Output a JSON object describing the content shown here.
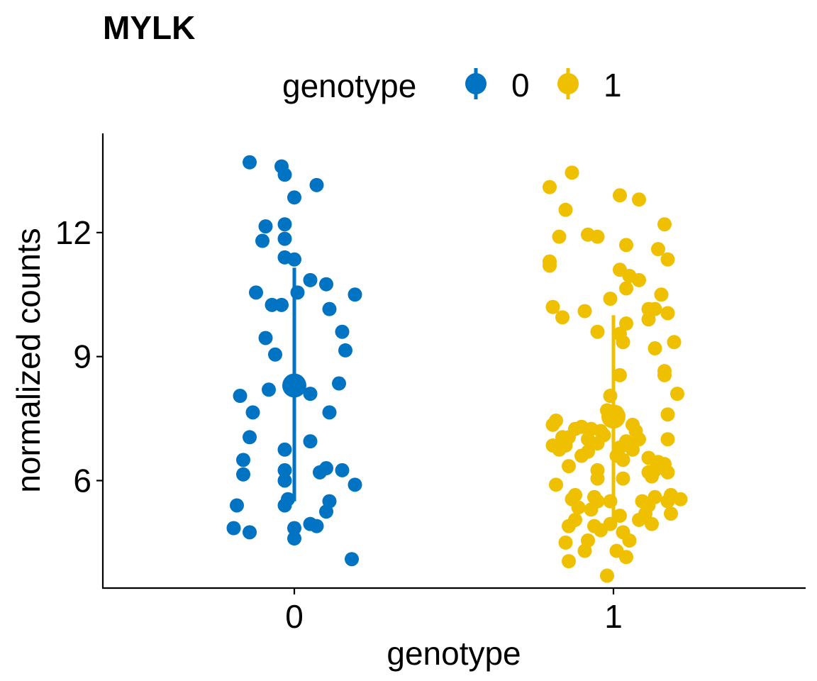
{
  "chart_data": {
    "type": "scatter",
    "title": "MYLK",
    "xlabel": "genotype",
    "ylabel": "normalized counts",
    "ylim": [
      3.4,
      14.4
    ],
    "yticks": [
      6,
      9,
      12
    ],
    "categories": [
      "0",
      "1"
    ],
    "grid": false,
    "legend": {
      "title": "genotype",
      "position": "top",
      "entries": [
        "0",
        "1"
      ]
    },
    "colors": {
      "0": "#0073C2",
      "1": "#EFC000"
    },
    "series": [
      {
        "name": "0",
        "summary": {
          "mean": 8.3,
          "low": 5.5,
          "high": 11.15
        },
        "points": [
          [
            -0.14,
            13.7
          ],
          [
            -0.04,
            13.6
          ],
          [
            -0.03,
            13.4
          ],
          [
            0.07,
            13.15
          ],
          [
            0.0,
            12.85
          ],
          [
            -0.09,
            12.15
          ],
          [
            -0.03,
            12.2
          ],
          [
            -0.1,
            11.8
          ],
          [
            -0.03,
            11.85
          ],
          [
            -0.03,
            11.4
          ],
          [
            0.0,
            11.35
          ],
          [
            0.05,
            10.85
          ],
          [
            0.1,
            10.75
          ],
          [
            -0.12,
            10.55
          ],
          [
            0.01,
            10.55
          ],
          [
            0.19,
            10.5
          ],
          [
            -0.07,
            10.25
          ],
          [
            -0.04,
            10.25
          ],
          [
            0.11,
            10.15
          ],
          [
            0.15,
            9.6
          ],
          [
            -0.09,
            9.45
          ],
          [
            0.16,
            9.15
          ],
          [
            -0.06,
            9.05
          ],
          [
            0.14,
            8.35
          ],
          [
            -0.08,
            8.2
          ],
          [
            -0.17,
            8.05
          ],
          [
            0.05,
            8.1
          ],
          [
            -0.13,
            7.65
          ],
          [
            0.11,
            7.65
          ],
          [
            -0.14,
            7.05
          ],
          [
            0.05,
            6.95
          ],
          [
            -0.03,
            6.75
          ],
          [
            -0.16,
            6.5
          ],
          [
            0.1,
            6.3
          ],
          [
            -0.03,
            6.25
          ],
          [
            0.15,
            6.25
          ],
          [
            -0.16,
            6.15
          ],
          [
            0.08,
            6.2
          ],
          [
            -0.03,
            6.0
          ],
          [
            0.19,
            5.9
          ],
          [
            -0.02,
            5.55
          ],
          [
            0.11,
            5.5
          ],
          [
            -0.18,
            5.4
          ],
          [
            -0.03,
            5.4
          ],
          [
            0.1,
            5.25
          ],
          [
            0.05,
            4.95
          ],
          [
            0.07,
            4.9
          ],
          [
            -0.19,
            4.85
          ],
          [
            0.0,
            4.85
          ],
          [
            -0.14,
            4.75
          ],
          [
            0.0,
            4.6
          ],
          [
            0.18,
            4.1
          ]
        ]
      },
      {
        "name": "1",
        "summary": {
          "mean": 7.55,
          "low": 5.1,
          "high": 10.0
        },
        "points": [
          [
            -0.13,
            13.45
          ],
          [
            -0.2,
            13.1
          ],
          [
            0.02,
            12.9
          ],
          [
            0.08,
            12.8
          ],
          [
            -0.15,
            12.55
          ],
          [
            0.16,
            12.2
          ],
          [
            -0.17,
            11.9
          ],
          [
            -0.08,
            11.95
          ],
          [
            -0.05,
            11.9
          ],
          [
            0.04,
            11.7
          ],
          [
            0.14,
            11.6
          ],
          [
            -0.2,
            11.3
          ],
          [
            -0.2,
            11.2
          ],
          [
            0.17,
            11.35
          ],
          [
            0.02,
            11.1
          ],
          [
            0.05,
            10.95
          ],
          [
            0.08,
            10.85
          ],
          [
            0.04,
            10.65
          ],
          [
            -0.01,
            10.4
          ],
          [
            0.15,
            10.5
          ],
          [
            0.11,
            10.15
          ],
          [
            0.13,
            10.15
          ],
          [
            -0.19,
            10.2
          ],
          [
            -0.09,
            10.1
          ],
          [
            0.17,
            10.05
          ],
          [
            -0.16,
            9.95
          ],
          [
            0.11,
            9.9
          ],
          [
            0.04,
            9.8
          ],
          [
            -0.05,
            9.6
          ],
          [
            0.02,
            9.55
          ],
          [
            0.03,
            9.35
          ],
          [
            0.19,
            9.35
          ],
          [
            0.13,
            9.2
          ],
          [
            0.16,
            8.65
          ],
          [
            0.16,
            8.55
          ],
          [
            0.02,
            8.55
          ],
          [
            0.2,
            8.1
          ],
          [
            -0.01,
            8.05
          ],
          [
            0.17,
            7.6
          ],
          [
            -0.02,
            7.7
          ],
          [
            0.01,
            7.65
          ],
          [
            -0.18,
            7.45
          ],
          [
            -0.19,
            7.35
          ],
          [
            0.06,
            7.35
          ],
          [
            -0.1,
            7.3
          ],
          [
            -0.12,
            7.25
          ],
          [
            -0.07,
            7.25
          ],
          [
            -0.04,
            7.2
          ],
          [
            0.07,
            7.2
          ],
          [
            -0.03,
            7.1
          ],
          [
            -0.14,
            7.05
          ],
          [
            -0.16,
            7.05
          ],
          [
            -0.08,
            7.0
          ],
          [
            0.08,
            7.0
          ],
          [
            0.17,
            7.0
          ],
          [
            0.04,
            6.95
          ],
          [
            -0.05,
            6.9
          ],
          [
            -0.19,
            6.85
          ],
          [
            0.02,
            6.8
          ],
          [
            -0.15,
            6.85
          ],
          [
            -0.17,
            6.75
          ],
          [
            -0.08,
            6.7
          ],
          [
            0.06,
            6.75
          ],
          [
            0.01,
            6.6
          ],
          [
            -0.1,
            6.6
          ],
          [
            0.11,
            6.55
          ],
          [
            0.14,
            6.45
          ],
          [
            0.03,
            6.5
          ],
          [
            0.16,
            6.4
          ],
          [
            -0.14,
            6.35
          ],
          [
            -0.05,
            6.25
          ],
          [
            0.13,
            6.25
          ],
          [
            0.11,
            6.2
          ],
          [
            0.17,
            6.2
          ],
          [
            0.12,
            6.1
          ],
          [
            -0.05,
            6.05
          ],
          [
            0.03,
            6.05
          ],
          [
            -0.18,
            5.9
          ],
          [
            0.18,
            5.65
          ],
          [
            -0.12,
            5.65
          ],
          [
            -0.06,
            5.6
          ],
          [
            0.13,
            5.6
          ],
          [
            -0.13,
            5.55
          ],
          [
            0.17,
            5.5
          ],
          [
            0.09,
            5.5
          ],
          [
            0.21,
            5.55
          ],
          [
            -0.05,
            5.5
          ],
          [
            -0.01,
            5.5
          ],
          [
            0.11,
            5.4
          ],
          [
            -0.11,
            5.35
          ],
          [
            -0.07,
            5.3
          ],
          [
            0.1,
            5.2
          ],
          [
            0.18,
            5.2
          ],
          [
            0.02,
            5.15
          ],
          [
            -0.12,
            5.05
          ],
          [
            0.08,
            5.05
          ],
          [
            -0.01,
            4.95
          ],
          [
            0.12,
            4.95
          ],
          [
            -0.06,
            4.9
          ],
          [
            -0.14,
            4.9
          ],
          [
            0.03,
            4.75
          ],
          [
            -0.04,
            4.8
          ],
          [
            -0.08,
            4.55
          ],
          [
            -0.15,
            4.5
          ],
          [
            0.05,
            4.55
          ],
          [
            -0.09,
            4.3
          ],
          [
            0.01,
            4.3
          ],
          [
            0.04,
            4.15
          ],
          [
            -0.14,
            4.05
          ],
          [
            -0.02,
            3.7
          ]
        ]
      }
    ]
  }
}
